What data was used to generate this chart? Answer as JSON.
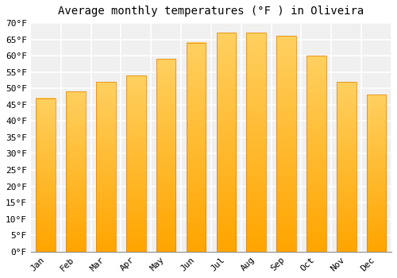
{
  "title": "Average monthly temperatures (°F ) in Oliveira",
  "months": [
    "Jan",
    "Feb",
    "Mar",
    "Apr",
    "May",
    "Jun",
    "Jul",
    "Aug",
    "Sep",
    "Oct",
    "Nov",
    "Dec"
  ],
  "values": [
    47,
    49,
    52,
    54,
    59,
    64,
    67,
    67,
    66,
    60,
    52,
    48
  ],
  "bar_color": "#FFA500",
  "bar_color_light": "#FFD060",
  "ylim": [
    0,
    70
  ],
  "yticks": [
    0,
    5,
    10,
    15,
    20,
    25,
    30,
    35,
    40,
    45,
    50,
    55,
    60,
    65,
    70
  ],
  "background_color": "#ffffff",
  "plot_bg_color": "#f0f0f0",
  "grid_color": "#ffffff",
  "title_fontsize": 10,
  "tick_fontsize": 8
}
